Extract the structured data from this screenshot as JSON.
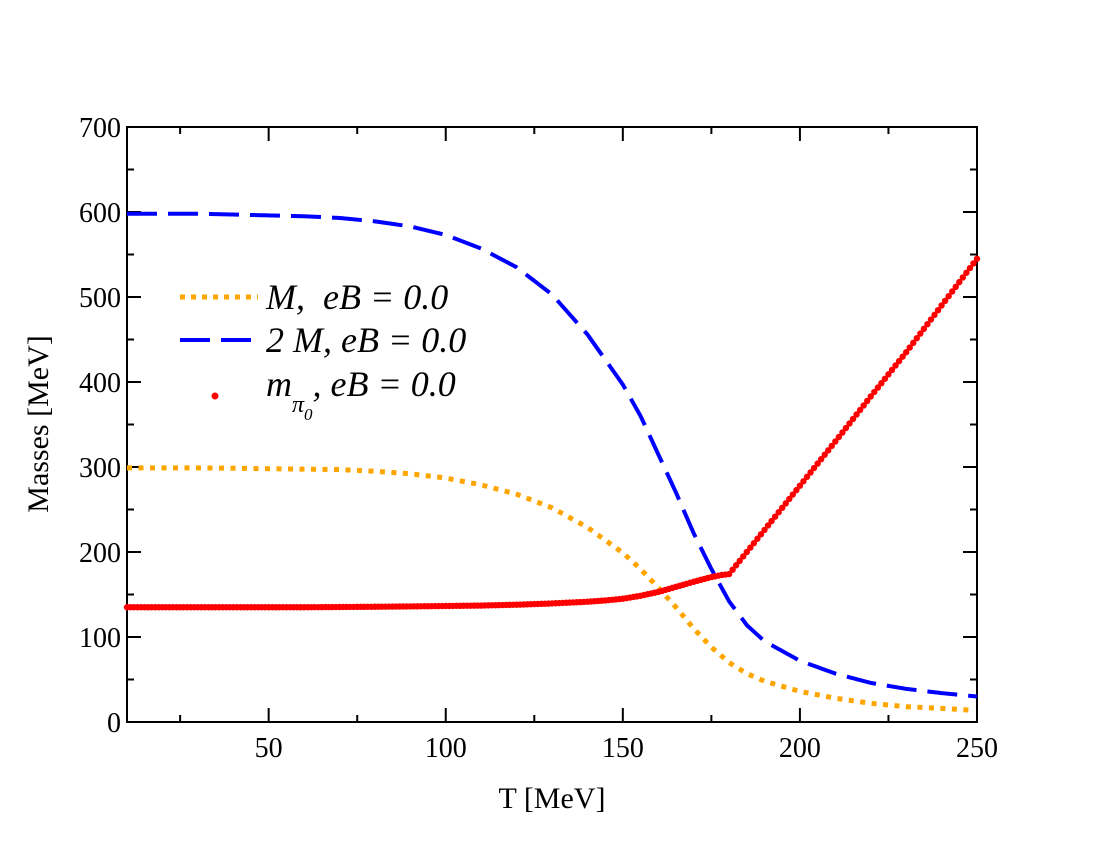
{
  "chart_data": {
    "type": "line",
    "title": "",
    "xlabel": "T [MeV]",
    "ylabel": "Masses [MeV]",
    "xlim": [
      10,
      250
    ],
    "ylim": [
      0,
      700
    ],
    "xticks": [
      50,
      100,
      150,
      200,
      250
    ],
    "yticks": [
      0,
      100,
      200,
      300,
      400,
      500,
      600,
      700
    ],
    "x_minor_step": 25,
    "y_minor_step": 50,
    "grid": false,
    "legend_position": "left",
    "series": [
      {
        "name": "M,  eB = 0.0",
        "style": "dotted",
        "color": "#FFA500",
        "x": [
          10,
          20,
          30,
          40,
          50,
          60,
          70,
          80,
          90,
          100,
          110,
          120,
          130,
          140,
          150,
          155,
          160,
          165,
          170,
          175,
          180,
          185,
          190,
          200,
          210,
          220,
          230,
          240,
          248
        ],
        "y": [
          299,
          299,
          299,
          298.5,
          298,
          297.5,
          297,
          295,
          292,
          287,
          279,
          268,
          252,
          229,
          199,
          180,
          158,
          135,
          110,
          88,
          70,
          57,
          48,
          36,
          28,
          22,
          18,
          16,
          14
        ]
      },
      {
        "name": "2 M, eB = 0.0",
        "style": "dashed",
        "color": "#0000FF",
        "x": [
          10,
          20,
          30,
          40,
          50,
          60,
          70,
          80,
          90,
          100,
          110,
          120,
          130,
          140,
          150,
          155,
          160,
          165,
          170,
          175,
          180,
          185,
          190,
          200,
          210,
          220,
          230,
          240,
          250
        ],
        "y": [
          598,
          598,
          598,
          597,
          596,
          595,
          593,
          589,
          583,
          573,
          557,
          535,
          503,
          456,
          397,
          360,
          315,
          270,
          222,
          180,
          142,
          114,
          95,
          72,
          57,
          46,
          39,
          34,
          30
        ]
      },
      {
        "name": "m_{π_0}, eB = 0.0",
        "style": "markers",
        "color": "#FF0000",
        "x": [
          10,
          20,
          30,
          40,
          50,
          60,
          70,
          80,
          90,
          100,
          110,
          120,
          130,
          140,
          145,
          150,
          155,
          160,
          165,
          170,
          175,
          178,
          180,
          185,
          190,
          200,
          210,
          220,
          230,
          240,
          250
        ],
        "y": [
          135,
          135,
          135,
          135,
          135,
          135,
          135.3,
          135.6,
          136,
          136.5,
          137,
          138,
          139.5,
          141.5,
          143,
          145,
          148.5,
          153,
          159,
          165,
          170.5,
          173,
          174,
          200,
          226,
          278,
          330,
          383,
          435,
          490,
          545
        ]
      }
    ],
    "legend": [
      {
        "symbol": "dotted",
        "color": "#FFA500",
        "label": "M,  eB = 0.0"
      },
      {
        "symbol": "dashed",
        "color": "#0000FF",
        "label": "2 M, eB = 0.0"
      },
      {
        "symbol": "marker",
        "color": "#FF0000",
        "label_main": "m",
        "label_sub1": "π",
        "label_sub2": "0",
        "label_rest": ", eB = 0.0"
      }
    ]
  }
}
